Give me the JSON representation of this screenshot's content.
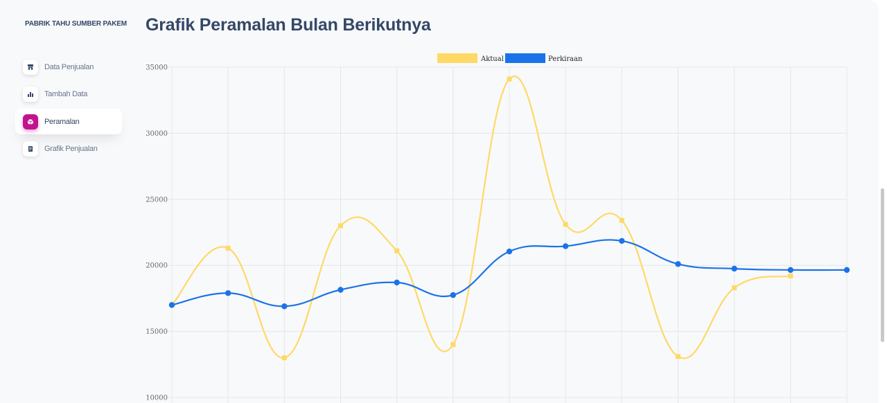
{
  "sidebar": {
    "brand": "PABRIK TAHU SUMBER PAKEM",
    "items": [
      {
        "label": "Data Penjualan",
        "icon": "store-icon",
        "active": false
      },
      {
        "label": "Tambah Data",
        "icon": "bar-chart-icon",
        "active": false
      },
      {
        "label": "Peramalan",
        "icon": "box-icon",
        "active": true
      },
      {
        "label": "Grafik Penjualan",
        "icon": "document-icon",
        "active": false
      }
    ]
  },
  "main": {
    "title": "Grafik Peramalan Bulan Berikutnya"
  },
  "colors": {
    "accent": "#c2138e",
    "actual": "#ffd966",
    "forecast": "#1a73e8",
    "text_dark": "#344767",
    "text_muted": "#67748e"
  },
  "chart_data": {
    "type": "line",
    "title": "",
    "xlabel": "",
    "ylabel": "",
    "ylim": [
      10000,
      35000
    ],
    "yticks": [
      35000,
      30000,
      25000,
      20000,
      15000,
      10000
    ],
    "x": [
      1,
      2,
      3,
      4,
      5,
      6,
      7,
      8,
      9,
      10,
      11,
      12,
      13
    ],
    "grid": true,
    "legend_position": "top-center",
    "series": [
      {
        "name": "Aktual",
        "color": "#ffd966",
        "marker": "square",
        "values": [
          17000,
          21300,
          13000,
          23000,
          21100,
          14000,
          34100,
          23100,
          23400,
          13100,
          18300,
          19200,
          null
        ]
      },
      {
        "name": "Perkiraan",
        "color": "#1a73e8",
        "marker": "circle",
        "values": [
          17000,
          17900,
          16900,
          18150,
          18700,
          17750,
          21050,
          21450,
          21850,
          20100,
          19750,
          19650,
          19650
        ]
      }
    ]
  }
}
